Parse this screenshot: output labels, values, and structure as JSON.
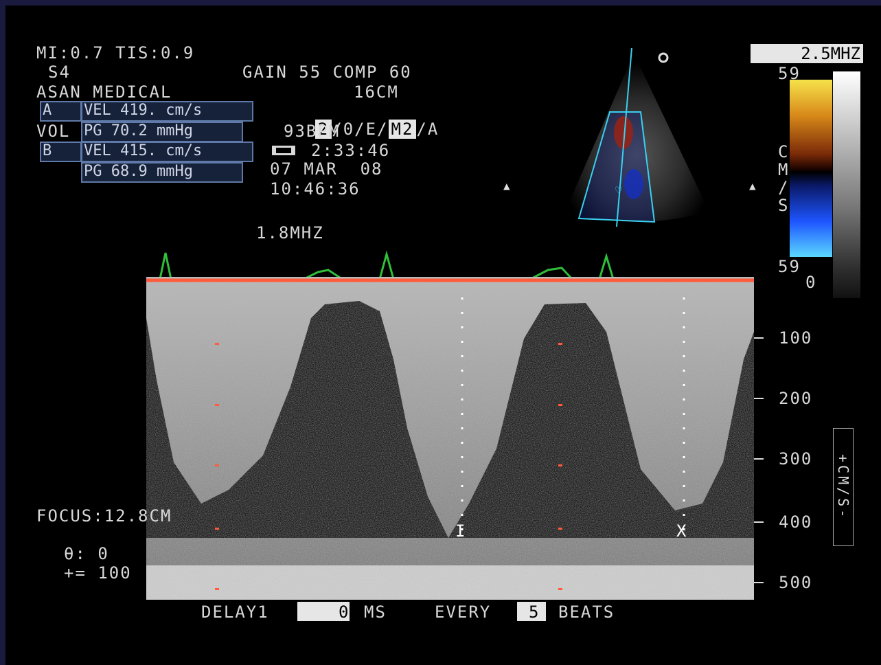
{
  "header": {
    "mi_tis": "MI:0.7 TIS:0.9",
    "probe": "S4",
    "gain_comp": "GAIN 55 COMP 60",
    "depth": "16CM",
    "institution": "ASAN MEDICAL",
    "mode_line": "2/0/E/M2/A",
    "mode_line_parts": [
      "2",
      "/0/E/",
      "M2",
      "/A"
    ],
    "heart_rate": "93BPM",
    "clock_icon": "tape-icon",
    "elapsed": "2:33:46",
    "date": "07 MAR  08",
    "time": "10:46:36",
    "doppler_freq": "1.8MHZ",
    "transducer_freq": "2.5MHZ"
  },
  "measurements": {
    "a_label": "A",
    "a_vel": "VEL 419. cm/s",
    "vol_label": "VOL",
    "a_pg": "PG 70.2 mmHg",
    "b_label": "B",
    "b_vel": "VEL 415. cm/s",
    "b_pg": "PG 68.9 mmHg"
  },
  "colormap": {
    "top_scale": "59",
    "bottom_scale": "59",
    "zero_label": "0",
    "side_letters": [
      "C",
      "M",
      "/",
      "S"
    ],
    "gradient_colors": [
      "#f6e24a",
      "#d88a1a",
      "#7a2a08",
      "#000000",
      "#1e55ff",
      "#5ad7ff"
    ]
  },
  "velocity_axis": {
    "ticks": [
      "100",
      "200",
      "300",
      "400",
      "500"
    ],
    "unit": "+CM/S-"
  },
  "cursor_markers": [
    "I",
    "X"
  ],
  "focus": "FOCUS:12.8CM",
  "angle": "θ: 0",
  "sweep": "+= 100",
  "footer": {
    "delay_label": "DELAY1",
    "delay_value": "0",
    "delay_unit": "MS",
    "every_label": "EVERY",
    "every_value": "5",
    "beats_label": "BEATS"
  },
  "colors": {
    "ecg_trace": "#2fbf3a",
    "baseline": "#ff5a3a",
    "measurement_box_border": "#5f7aa8",
    "sector_outline": "#3ad0f0"
  }
}
